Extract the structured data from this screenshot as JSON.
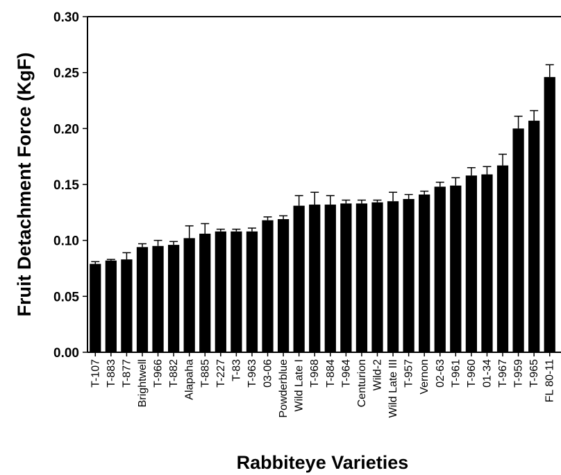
{
  "chart_data": {
    "type": "bar",
    "title": "",
    "xlabel": "Rabbiteye Varieties",
    "ylabel": "Fruit Detachment Force (KgF)",
    "ylim": [
      0.0,
      0.3
    ],
    "yticks": [
      "0.00",
      "0.05",
      "0.10",
      "0.15",
      "0.20",
      "0.25",
      "0.30"
    ],
    "grid": false,
    "legend": "none",
    "bar_color": "#000000",
    "categories": [
      "T-107",
      "T-883",
      "T-877",
      "Brightwell",
      "T-966",
      "T-882",
      "Alapaha",
      "T-885",
      "T-227",
      "T-83",
      "T-963",
      "03-06",
      "Powderblue",
      "Wild Late I",
      "T-968",
      "T-884",
      "T-964",
      "Centurion",
      "Wild-2",
      "Wild Late III",
      "T-957",
      "Vernon",
      "02-63",
      "T-961",
      "T-960",
      "01-34",
      "T-967",
      "T-959",
      "T-965",
      "FL 80-11"
    ],
    "values": [
      0.079,
      0.082,
      0.083,
      0.094,
      0.095,
      0.096,
      0.102,
      0.106,
      0.108,
      0.108,
      0.108,
      0.118,
      0.119,
      0.131,
      0.132,
      0.132,
      0.133,
      0.133,
      0.134,
      0.135,
      0.137,
      0.141,
      0.148,
      0.149,
      0.158,
      0.159,
      0.167,
      0.2,
      0.207,
      0.246
    ],
    "errors": [
      0.002,
      0.001,
      0.006,
      0.003,
      0.005,
      0.003,
      0.011,
      0.009,
      0.002,
      0.002,
      0.003,
      0.003,
      0.003,
      0.009,
      0.011,
      0.008,
      0.003,
      0.003,
      0.002,
      0.008,
      0.004,
      0.003,
      0.004,
      0.007,
      0.007,
      0.007,
      0.01,
      0.011,
      0.009,
      0.011
    ]
  }
}
